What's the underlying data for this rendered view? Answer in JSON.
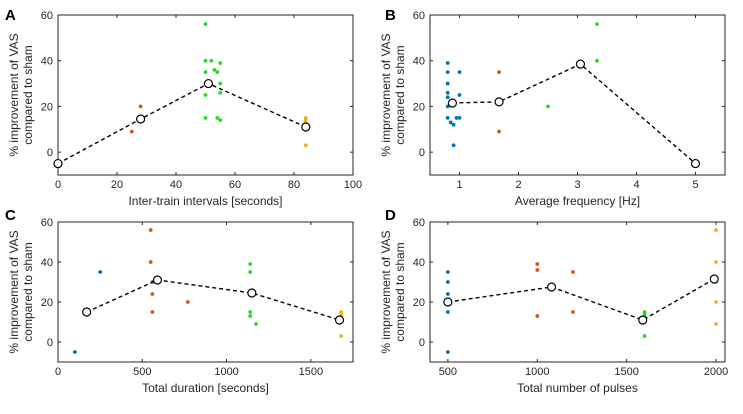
{
  "colors": {
    "axis": "#262626",
    "mean_line": "#000000",
    "mean_marker_fill": "#ffffff"
  },
  "chart_data": [
    {
      "panel": "A",
      "type": "scatter",
      "xlabel": "Inter-train intervals [seconds]",
      "ylabel": [
        "% improvement of VAS",
        "compared to sham"
      ],
      "xlim": [
        0,
        100
      ],
      "ylim": [
        -10,
        60
      ],
      "xticks": [
        0,
        20,
        40,
        60,
        80,
        100
      ],
      "yticks": [
        0,
        20,
        40,
        60
      ],
      "groups": [
        {
          "color": "#0072bd",
          "points": [
            [
              0,
              -5
            ]
          ]
        },
        {
          "color": "#d95319",
          "points": [
            [
              25,
              9
            ],
            [
              28,
              20
            ]
          ]
        },
        {
          "color": "#22dd22",
          "points": [
            [
              50,
              56
            ],
            [
              50,
              40
            ],
            [
              50,
              35
            ],
            [
              50,
              30
            ],
            [
              50,
              25
            ],
            [
              50,
              15
            ],
            [
              52,
              40
            ],
            [
              53,
              36
            ],
            [
              54,
              35
            ],
            [
              54,
              15
            ],
            [
              55,
              39
            ],
            [
              55,
              30
            ],
            [
              55,
              26
            ],
            [
              55,
              14
            ]
          ]
        },
        {
          "color": "#edb120",
          "points": [
            [
              84,
              15
            ],
            [
              84,
              14
            ],
            [
              84,
              13
            ],
            [
              84,
              3
            ]
          ]
        }
      ],
      "mean_line": {
        "x": [
          0,
          28,
          51,
          84
        ],
        "y": [
          -5,
          14.5,
          30,
          11
        ]
      }
    },
    {
      "panel": "B",
      "type": "scatter",
      "xlabel": "Average frequency [Hz]",
      "ylabel": [
        "% improvement of VAS",
        "compared to sham"
      ],
      "xlim": [
        0.5,
        5.5
      ],
      "ylim": [
        -10,
        60
      ],
      "xticks": [
        1,
        2,
        3,
        4,
        5
      ],
      "yticks": [
        0,
        20,
        40,
        60
      ],
      "groups": [
        {
          "color": "#0072bd",
          "points": [
            [
              0.8,
              39
            ],
            [
              0.8,
              35
            ],
            [
              0.8,
              30
            ],
            [
              0.8,
              26
            ],
            [
              0.8,
              24
            ],
            [
              0.8,
              20
            ],
            [
              0.8,
              15
            ],
            [
              0.85,
              13
            ],
            [
              0.9,
              12
            ],
            [
              0.9,
              3
            ],
            [
              0.95,
              15
            ],
            [
              1.0,
              35
            ],
            [
              1.0,
              25
            ],
            [
              1.0,
              15
            ]
          ]
        },
        {
          "color": "#d95319",
          "points": [
            [
              1.67,
              35
            ],
            [
              1.67,
              9
            ]
          ]
        },
        {
          "color": "#22dd22",
          "points": [
            [
              2.5,
              20
            ],
            [
              3.33,
              56
            ],
            [
              3.33,
              40
            ]
          ]
        },
        {
          "color": "#0072bd",
          "points": [
            [
              5,
              -5
            ]
          ]
        }
      ],
      "mean_line": {
        "x": [
          0.88,
          1.67,
          3.05,
          5
        ],
        "y": [
          21.5,
          22,
          38.5,
          -5
        ]
      }
    },
    {
      "panel": "C",
      "type": "scatter",
      "xlabel": "Total duration [seconds]",
      "ylabel": [
        "% improvement of VAS",
        "compared to sham"
      ],
      "xlim": [
        0,
        1750
      ],
      "ylim": [
        -10,
        60
      ],
      "xticks": [
        0,
        500,
        1000,
        1500
      ],
      "yticks": [
        0,
        20,
        40,
        60
      ],
      "groups": [
        {
          "color": "#0072bd",
          "points": [
            [
              100,
              -5
            ],
            [
              250,
              35
            ]
          ]
        },
        {
          "color": "#d95319",
          "points": [
            [
              550,
              56
            ],
            [
              550,
              40
            ],
            [
              560,
              30
            ],
            [
              560,
              24
            ],
            [
              560,
              15
            ],
            [
              770,
              20
            ]
          ]
        },
        {
          "color": "#22dd22",
          "points": [
            [
              1140,
              39
            ],
            [
              1140,
              35
            ],
            [
              1140,
              25
            ],
            [
              1140,
              15
            ],
            [
              1140,
              13
            ],
            [
              1175,
              9
            ]
          ]
        },
        {
          "color": "#edb120",
          "points": [
            [
              1680,
              15
            ],
            [
              1680,
              14
            ],
            [
              1680,
              13
            ],
            [
              1680,
              3
            ]
          ]
        }
      ],
      "mean_line": {
        "x": [
          170,
          590,
          1150,
          1670
        ],
        "y": [
          15,
          31,
          24.5,
          11
        ]
      }
    },
    {
      "panel": "D",
      "type": "scatter",
      "xlabel": "Total number of pulses",
      "ylabel": [
        "% improvement of VAS",
        "compared to sham"
      ],
      "xlim": [
        400,
        2050
      ],
      "ylim": [
        -10,
        60
      ],
      "xticks": [
        500,
        1000,
        1500,
        2000
      ],
      "yticks": [
        0,
        20,
        40,
        60
      ],
      "groups": [
        {
          "color": "#0072bd",
          "points": [
            [
              500,
              35
            ],
            [
              500,
              30
            ],
            [
              500,
              24
            ],
            [
              500,
              20
            ],
            [
              500,
              15
            ],
            [
              500,
              -5
            ]
          ]
        },
        {
          "color": "#d95319",
          "points": [
            [
              1000,
              39
            ],
            [
              1000,
              36
            ],
            [
              1000,
              13
            ],
            [
              1200,
              35
            ],
            [
              1200,
              15
            ]
          ]
        },
        {
          "color": "#22dd22",
          "points": [
            [
              1600,
              15
            ],
            [
              1600,
              14
            ],
            [
              1600,
              13
            ],
            [
              1600,
              12
            ],
            [
              1600,
              3
            ]
          ]
        },
        {
          "color": "#edb120",
          "points": [
            [
              2000,
              56
            ],
            [
              2000,
              40
            ],
            [
              2000,
              30
            ],
            [
              2000,
              20
            ],
            [
              2000,
              9
            ]
          ]
        }
      ],
      "mean_line": {
        "x": [
          500,
          1080,
          1590,
          1990
        ],
        "y": [
          20,
          27.5,
          11,
          31.5
        ]
      }
    }
  ]
}
